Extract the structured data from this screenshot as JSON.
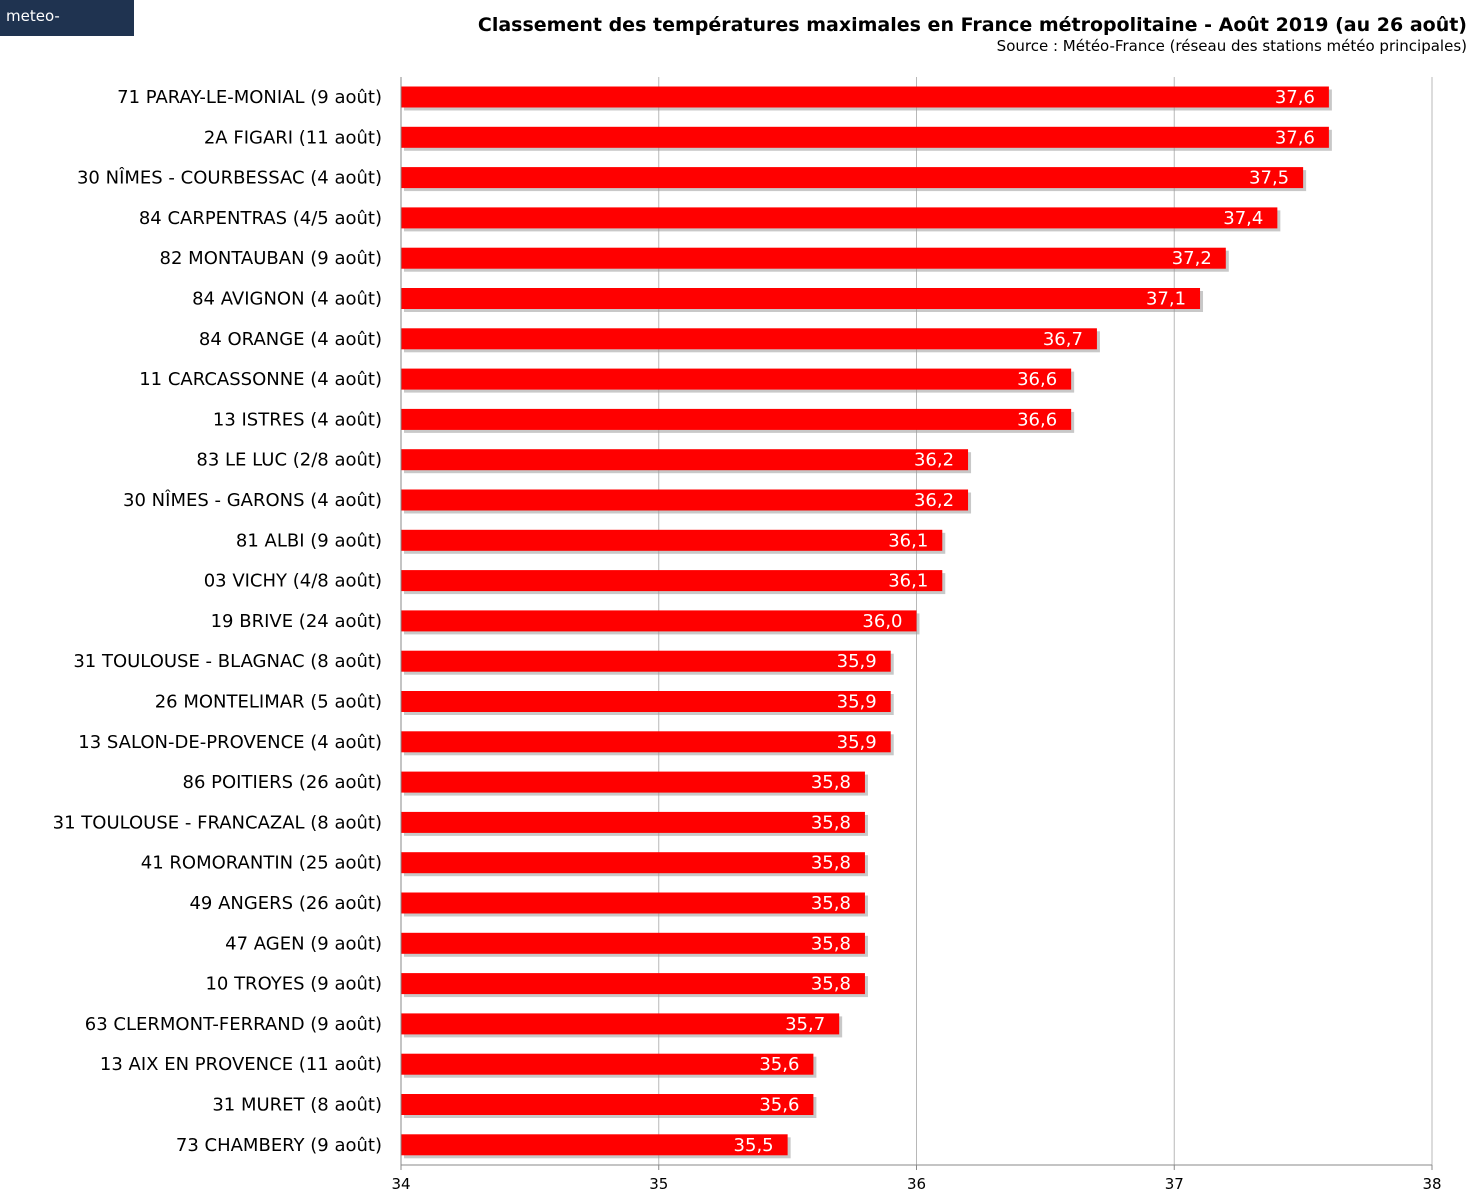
{
  "brand": {
    "logo_text": "meteo-villes.com",
    "bg_color": "#1f3350"
  },
  "chart_data": {
    "type": "bar",
    "orientation": "horizontal",
    "title": "Classement des températures maximales en France métropolitaine - Août 2019 (au 26 août)",
    "subtitle": "Source : Météo-France (réseau des stations météo principales)",
    "bar_color": "#ff0000",
    "xlim": [
      34,
      38
    ],
    "xticks": [
      "34",
      "35",
      "36",
      "37",
      "38"
    ],
    "grid": true,
    "categories": [
      "71 PARAY-LE-MONIAL (9 août)",
      "2A FIGARI (11 août)",
      "30 NÎMES - COURBESSAC (4 août)",
      "84 CARPENTRAS (4/5 août)",
      "82 MONTAUBAN (9 août)",
      "84 AVIGNON (4 août)",
      "84 ORANGE (4 août)",
      "11 CARCASSONNE (4 août)",
      "13 ISTRES (4 août)",
      "83 LE LUC (2/8 août)",
      "30 NÎMES - GARONS (4 août)",
      "81 ALBI (9 août)",
      "03 VICHY (4/8 août)",
      "19 BRIVE (24 août)",
      "31 TOULOUSE - BLAGNAC (8 août)",
      "26 MONTELIMAR (5 août)",
      "13 SALON-DE-PROVENCE (4 août)",
      "86 POITIERS (26 août)",
      "31 TOULOUSE - FRANCAZAL (8 août)",
      "41 ROMORANTIN (25 août)",
      "49 ANGERS (26 août)",
      "47 AGEN (9 août)",
      "10 TROYES (9 août)",
      "63 CLERMONT-FERRAND (9 août)",
      "13 AIX EN PROVENCE (11 août)",
      "31 MURET (8 août)",
      "73 CHAMBERY (9 août)"
    ],
    "values": [
      37.6,
      37.6,
      37.5,
      37.4,
      37.2,
      37.1,
      36.7,
      36.6,
      36.6,
      36.2,
      36.2,
      36.1,
      36.1,
      36.0,
      35.9,
      35.9,
      35.9,
      35.8,
      35.8,
      35.8,
      35.8,
      35.8,
      35.8,
      35.7,
      35.6,
      35.6,
      35.5
    ],
    "value_labels": [
      "37,6",
      "37,6",
      "37,5",
      "37,4",
      "37,2",
      "37,1",
      "36,7",
      "36,6",
      "36,6",
      "36,2",
      "36,2",
      "36,1",
      "36,1",
      "36,0",
      "35,9",
      "35,9",
      "35,9",
      "35,8",
      "35,8",
      "35,8",
      "35,8",
      "35,8",
      "35,8",
      "35,7",
      "35,6",
      "35,6",
      "35,5"
    ]
  }
}
